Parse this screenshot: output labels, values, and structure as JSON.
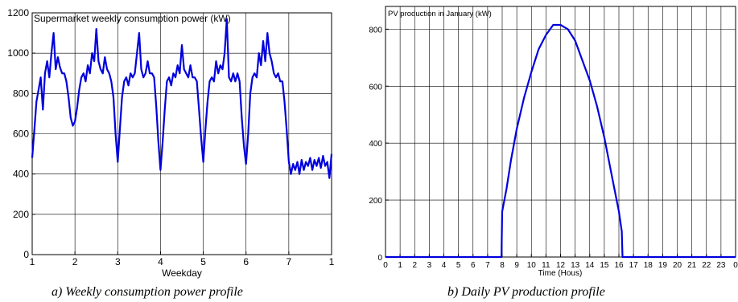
{
  "chart_data": [
    {
      "type": "line",
      "title": "Supermarket weekly consumption power (kW)",
      "xlabel": "Weekday",
      "ylabel": "",
      "xlim": [
        1,
        8
      ],
      "ylim": [
        0,
        1200
      ],
      "x_tick_labels": [
        "1",
        "2",
        "3",
        "4",
        "5",
        "6",
        "7",
        "1"
      ],
      "y_ticks": [
        0,
        200,
        400,
        600,
        800,
        1000,
        1200
      ],
      "grid": true,
      "caption": "a)  Weekly consumption power profile",
      "series": [
        {
          "color": "#0000dd",
          "points": [
            [
              1.0,
              480
            ],
            [
              1.05,
              620
            ],
            [
              1.1,
              760
            ],
            [
              1.15,
              820
            ],
            [
              1.2,
              880
            ],
            [
              1.25,
              720
            ],
            [
              1.3,
              900
            ],
            [
              1.35,
              960
            ],
            [
              1.4,
              880
            ],
            [
              1.45,
              1000
            ],
            [
              1.5,
              1100
            ],
            [
              1.55,
              920
            ],
            [
              1.6,
              980
            ],
            [
              1.65,
              930
            ],
            [
              1.7,
              900
            ],
            [
              1.75,
              900
            ],
            [
              1.8,
              860
            ],
            [
              1.85,
              780
            ],
            [
              1.9,
              680
            ],
            [
              1.95,
              640
            ],
            [
              2.0,
              660
            ],
            [
              2.05,
              730
            ],
            [
              2.1,
              820
            ],
            [
              2.15,
              880
            ],
            [
              2.2,
              900
            ],
            [
              2.25,
              860
            ],
            [
              2.3,
              940
            ],
            [
              2.35,
              900
            ],
            [
              2.4,
              1000
            ],
            [
              2.45,
              960
            ],
            [
              2.5,
              1120
            ],
            [
              2.55,
              960
            ],
            [
              2.6,
              920
            ],
            [
              2.65,
              900
            ],
            [
              2.7,
              980
            ],
            [
              2.75,
              920
            ],
            [
              2.8,
              900
            ],
            [
              2.85,
              860
            ],
            [
              2.9,
              780
            ],
            [
              2.95,
              600
            ],
            [
              3.0,
              460
            ],
            [
              3.05,
              620
            ],
            [
              3.1,
              780
            ],
            [
              3.15,
              860
            ],
            [
              3.2,
              880
            ],
            [
              3.25,
              840
            ],
            [
              3.3,
              900
            ],
            [
              3.35,
              880
            ],
            [
              3.4,
              900
            ],
            [
              3.45,
              1000
            ],
            [
              3.5,
              1100
            ],
            [
              3.55,
              920
            ],
            [
              3.6,
              880
            ],
            [
              3.65,
              900
            ],
            [
              3.7,
              960
            ],
            [
              3.75,
              900
            ],
            [
              3.8,
              900
            ],
            [
              3.85,
              880
            ],
            [
              3.9,
              740
            ],
            [
              3.95,
              560
            ],
            [
              4.0,
              420
            ],
            [
              4.05,
              560
            ],
            [
              4.1,
              720
            ],
            [
              4.15,
              860
            ],
            [
              4.2,
              880
            ],
            [
              4.25,
              840
            ],
            [
              4.3,
              900
            ],
            [
              4.35,
              880
            ],
            [
              4.4,
              940
            ],
            [
              4.45,
              900
            ],
            [
              4.5,
              1040
            ],
            [
              4.55,
              920
            ],
            [
              4.6,
              900
            ],
            [
              4.65,
              880
            ],
            [
              4.7,
              940
            ],
            [
              4.75,
              880
            ],
            [
              4.8,
              880
            ],
            [
              4.85,
              860
            ],
            [
              4.9,
              720
            ],
            [
              4.95,
              580
            ],
            [
              5.0,
              460
            ],
            [
              5.05,
              620
            ],
            [
              5.1,
              760
            ],
            [
              5.15,
              860
            ],
            [
              5.2,
              880
            ],
            [
              5.25,
              860
            ],
            [
              5.3,
              960
            ],
            [
              5.35,
              900
            ],
            [
              5.4,
              940
            ],
            [
              5.45,
              920
            ],
            [
              5.5,
              1000
            ],
            [
              5.55,
              1170
            ],
            [
              5.6,
              880
            ],
            [
              5.65,
              860
            ],
            [
              5.7,
              900
            ],
            [
              5.75,
              860
            ],
            [
              5.8,
              900
            ],
            [
              5.85,
              860
            ],
            [
              5.9,
              680
            ],
            [
              5.95,
              540
            ],
            [
              6.0,
              450
            ],
            [
              6.05,
              600
            ],
            [
              6.1,
              800
            ],
            [
              6.15,
              880
            ],
            [
              6.2,
              900
            ],
            [
              6.25,
              880
            ],
            [
              6.3,
              1000
            ],
            [
              6.35,
              940
            ],
            [
              6.4,
              1060
            ],
            [
              6.45,
              960
            ],
            [
              6.5,
              1100
            ],
            [
              6.55,
              1000
            ],
            [
              6.6,
              960
            ],
            [
              6.65,
              900
            ],
            [
              6.7,
              880
            ],
            [
              6.75,
              900
            ],
            [
              6.8,
              860
            ],
            [
              6.85,
              860
            ],
            [
              6.9,
              760
            ],
            [
              6.95,
              620
            ],
            [
              7.0,
              460
            ],
            [
              7.05,
              400
            ],
            [
              7.1,
              450
            ],
            [
              7.15,
              420
            ],
            [
              7.2,
              460
            ],
            [
              7.25,
              400
            ],
            [
              7.3,
              470
            ],
            [
              7.35,
              420
            ],
            [
              7.4,
              460
            ],
            [
              7.45,
              440
            ],
            [
              7.5,
              480
            ],
            [
              7.55,
              420
            ],
            [
              7.6,
              470
            ],
            [
              7.65,
              440
            ],
            [
              7.7,
              480
            ],
            [
              7.75,
              430
            ],
            [
              7.8,
              490
            ],
            [
              7.85,
              440
            ],
            [
              7.9,
              460
            ],
            [
              7.95,
              380
            ],
            [
              8.0,
              500
            ]
          ]
        }
      ]
    },
    {
      "type": "line",
      "title": "PV production in January (kW)",
      "xlabel": "Time (Hous)",
      "ylabel": "",
      "xlim": [
        0,
        24
      ],
      "ylim": [
        0,
        880
      ],
      "x_tick_labels": [
        "0",
        "1",
        "2",
        "3",
        "4",
        "5",
        "6",
        "7",
        "8",
        "9",
        "10",
        "11",
        "12",
        "13",
        "14",
        "15",
        "16",
        "17",
        "18",
        "19",
        "20",
        "21",
        "22",
        "23",
        "0"
      ],
      "y_ticks": [
        0,
        200,
        400,
        600,
        800
      ],
      "grid": true,
      "caption": "b)  Daily PV production profile",
      "series": [
        {
          "color": "#0000dd",
          "points": [
            [
              0,
              0
            ],
            [
              1,
              0
            ],
            [
              2,
              0
            ],
            [
              3,
              0
            ],
            [
              4,
              0
            ],
            [
              5,
              0
            ],
            [
              6,
              0
            ],
            [
              7,
              0
            ],
            [
              7.95,
              0
            ],
            [
              8.0,
              160
            ],
            [
              8.3,
              240
            ],
            [
              8.6,
              340
            ],
            [
              9.0,
              450
            ],
            [
              9.5,
              560
            ],
            [
              10.0,
              650
            ],
            [
              10.5,
              730
            ],
            [
              11.0,
              780
            ],
            [
              11.5,
              815
            ],
            [
              12.0,
              815
            ],
            [
              12.5,
              800
            ],
            [
              13.0,
              760
            ],
            [
              13.5,
              690
            ],
            [
              14.0,
              620
            ],
            [
              14.5,
              530
            ],
            [
              15.0,
              420
            ],
            [
              15.5,
              290
            ],
            [
              16.0,
              160
            ],
            [
              16.2,
              90
            ],
            [
              16.25,
              0
            ],
            [
              17,
              0
            ],
            [
              18,
              0
            ],
            [
              19,
              0
            ],
            [
              20,
              0
            ],
            [
              21,
              0
            ],
            [
              22,
              0
            ],
            [
              23,
              0
            ],
            [
              24,
              0
            ]
          ]
        }
      ]
    }
  ]
}
